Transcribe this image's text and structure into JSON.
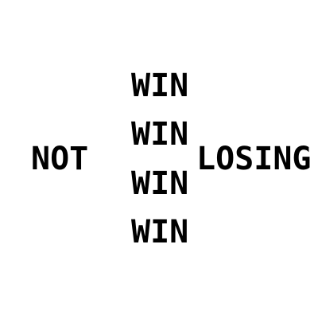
{
  "puzzle": {
    "left_word": "NOT",
    "stacked_words": [
      "WIN",
      "WIN",
      "WIN",
      "WIN"
    ],
    "right_word": "LOSING"
  },
  "colors": {
    "background": "#ffffff",
    "text": "#000000"
  }
}
